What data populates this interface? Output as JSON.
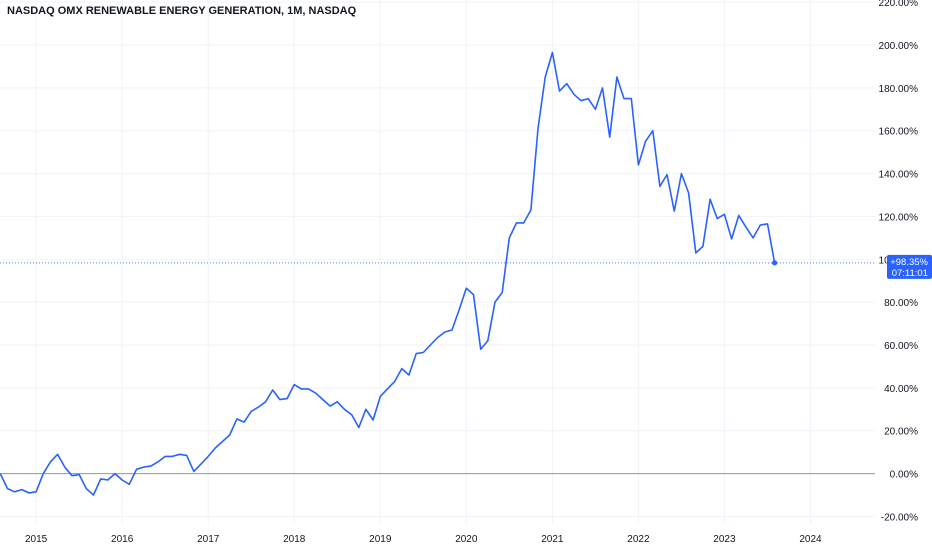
{
  "chart_data": {
    "type": "line",
    "title": "NASDAQ OMX RENEWABLE ENERGY GENERATION, 1M, NASDAQ",
    "y_tick_labels": [
      "220.00%",
      "200.00%",
      "180.00%",
      "160.00%",
      "140.00%",
      "120.00%",
      "100.00%",
      "80.00%",
      "60.00%",
      "40.00%",
      "20.00%",
      "0.00%",
      "-20.00%"
    ],
    "y_ticks": [
      220,
      200,
      180,
      160,
      140,
      120,
      100,
      80,
      60,
      40,
      20,
      0,
      -20
    ],
    "x_tick_labels": [
      "2015",
      "2016",
      "2017",
      "2018",
      "2019",
      "2020",
      "2021",
      "2022",
      "2023",
      "2024"
    ],
    "x_ticks": [
      2015,
      2016,
      2017,
      2018,
      2019,
      2020,
      2021,
      2022,
      2023,
      2024
    ],
    "ylim": [
      -24,
      221
    ],
    "xlim": [
      2014.58,
      2024.75
    ],
    "grid": true,
    "legend": "none",
    "colors": {
      "line": "#2962ff",
      "baseline": "#9598a1",
      "label_bg": "#2962ff",
      "label_text": "#ffffff",
      "text": "#131722",
      "grid": "#f0f3fa"
    },
    "last_value_label": "+98.35%",
    "countdown_label": "07:11:01",
    "series": [
      {
        "x": [
          2014.583,
          2014.667,
          2014.75,
          2014.833,
          2014.917,
          2015.0,
          2015.083,
          2015.167,
          2015.25,
          2015.333,
          2015.417,
          2015.5,
          2015.583,
          2015.667,
          2015.75,
          2015.833,
          2015.917,
          2016.0,
          2016.083,
          2016.167,
          2016.25,
          2016.333,
          2016.417,
          2016.5,
          2016.583,
          2016.667,
          2016.75,
          2016.833,
          2016.917,
          2017.0,
          2017.083,
          2017.167,
          2017.25,
          2017.333,
          2017.417,
          2017.5,
          2017.583,
          2017.667,
          2017.75,
          2017.833,
          2017.917,
          2018.0,
          2018.083,
          2018.167,
          2018.25,
          2018.333,
          2018.417,
          2018.5,
          2018.583,
          2018.667,
          2018.75,
          2018.833,
          2018.917,
          2019.0,
          2019.083,
          2019.167,
          2019.25,
          2019.333,
          2019.417,
          2019.5,
          2019.583,
          2019.667,
          2019.75,
          2019.833,
          2019.917,
          2020.0,
          2020.083,
          2020.167,
          2020.25,
          2020.333,
          2020.417,
          2020.5,
          2020.583,
          2020.667,
          2020.75,
          2020.833,
          2020.917,
          2021.0,
          2021.083,
          2021.167,
          2021.25,
          2021.333,
          2021.417,
          2021.5,
          2021.583,
          2021.667,
          2021.75,
          2021.833,
          2021.917,
          2022.0,
          2022.083,
          2022.167,
          2022.25,
          2022.333,
          2022.417,
          2022.5,
          2022.583,
          2022.667,
          2022.75,
          2022.833,
          2022.917,
          2023.0,
          2023.083,
          2023.167,
          2023.25,
          2023.333,
          2023.417,
          2023.5,
          2023.583
        ],
        "y": [
          0.0,
          -7.0,
          -8.5,
          -7.5,
          -9.0,
          -8.5,
          0.0,
          5.5,
          9.0,
          3.0,
          -1.0,
          -0.5,
          -7.0,
          -10.0,
          -2.5,
          -3.0,
          0.0,
          -3.0,
          -5.0,
          2.0,
          3.0,
          3.5,
          5.5,
          8.0,
          8.0,
          9.0,
          8.5,
          1.0,
          4.5,
          8.0,
          12.0,
          15.0,
          18.0,
          25.5,
          24.0,
          29.0,
          31.0,
          33.5,
          39.0,
          34.5,
          35.0,
          41.5,
          39.5,
          39.5,
          37.5,
          34.5,
          31.5,
          33.5,
          30.0,
          27.5,
          21.5,
          30.0,
          25.0,
          36.0,
          39.5,
          43.0,
          49.0,
          46.0,
          56.0,
          56.5,
          60.0,
          63.5,
          66.0,
          67.0,
          76.5,
          86.5,
          83.5,
          58.0,
          62.0,
          80.0,
          84.5,
          110.0,
          117.0,
          117.0,
          123.0,
          161.0,
          185.0,
          196.5,
          178.5,
          182.0,
          177.0,
          174.0,
          175.0,
          170.0,
          180.0,
          157.0,
          185.0,
          175.0,
          175.0,
          144.0,
          155.0,
          160.0,
          134.0,
          139.5,
          122.5,
          140.0,
          131.0,
          103.0,
          106.0,
          128.0,
          119.0,
          121.0,
          109.5,
          120.5,
          115.0,
          110.0,
          116.0,
          116.5,
          98.35
        ]
      }
    ]
  }
}
